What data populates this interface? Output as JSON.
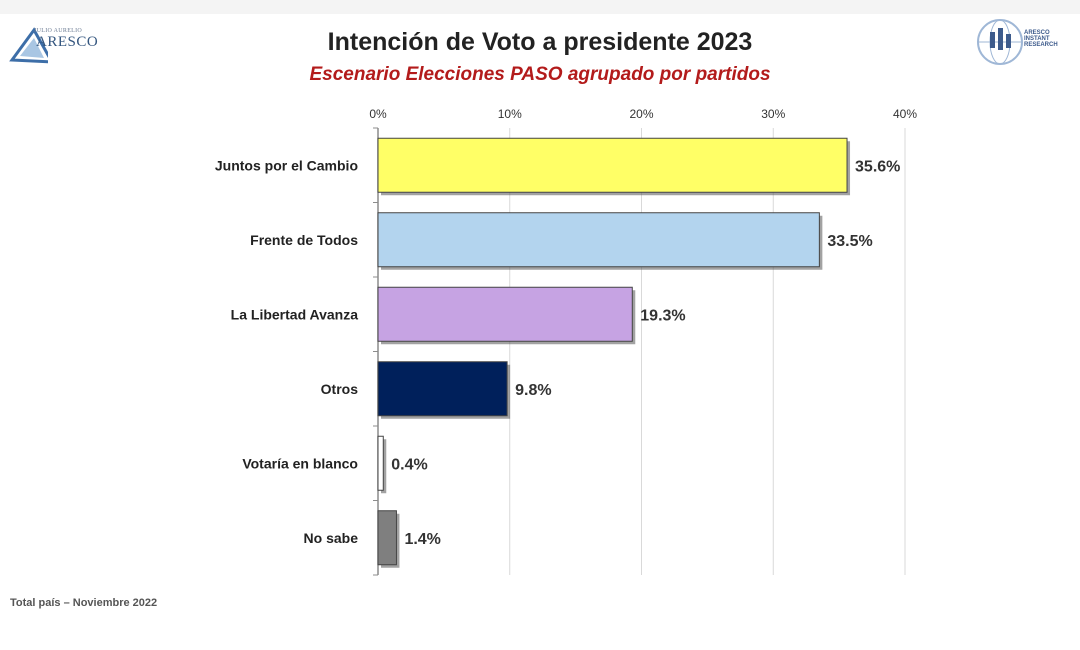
{
  "header": {
    "title": "Intención de Voto a presidente 2023",
    "subtitle": "Escenario Elecciones PASO agrupado por partidos"
  },
  "logos": {
    "left": {
      "small_text": "JULIO AURELIO",
      "main_text": "ARESCO",
      "icon": "aresco-triangle-logo"
    },
    "right": {
      "lines": [
        "ARESCO",
        "INSTANT",
        "RESEARCH"
      ],
      "icon": "aresco-instant-research-globe-logo"
    }
  },
  "footer": {
    "text": "Total país – Noviembre 2022"
  },
  "colors": {
    "title": "#222222",
    "subtitle": "#b31b1b",
    "grid": "#d9d9d9"
  },
  "chart_data": {
    "type": "bar",
    "orientation": "horizontal",
    "categories": [
      "Juntos por el Cambio",
      "Frente de Todos",
      "La Libertad Avanza",
      "Otros",
      "Votaría en blanco",
      "No sabe"
    ],
    "values": [
      35.6,
      33.5,
      19.3,
      9.8,
      0.4,
      1.4
    ],
    "value_labels": [
      "35.6%",
      "33.5%",
      "19.3%",
      "9.8%",
      "0.4%",
      "1.4%"
    ],
    "colors": [
      "#ffff66",
      "#b3d4ee",
      "#c6a3e3",
      "#00205b",
      "#ffffff",
      "#7f7f7f"
    ],
    "xlim": [
      0,
      40
    ],
    "xticks": [
      0,
      10,
      20,
      30,
      40
    ],
    "xtick_labels": [
      "0%",
      "10%",
      "20%",
      "30%",
      "40%"
    ],
    "x_axis_position": "top",
    "grid": true,
    "legend": "none"
  }
}
